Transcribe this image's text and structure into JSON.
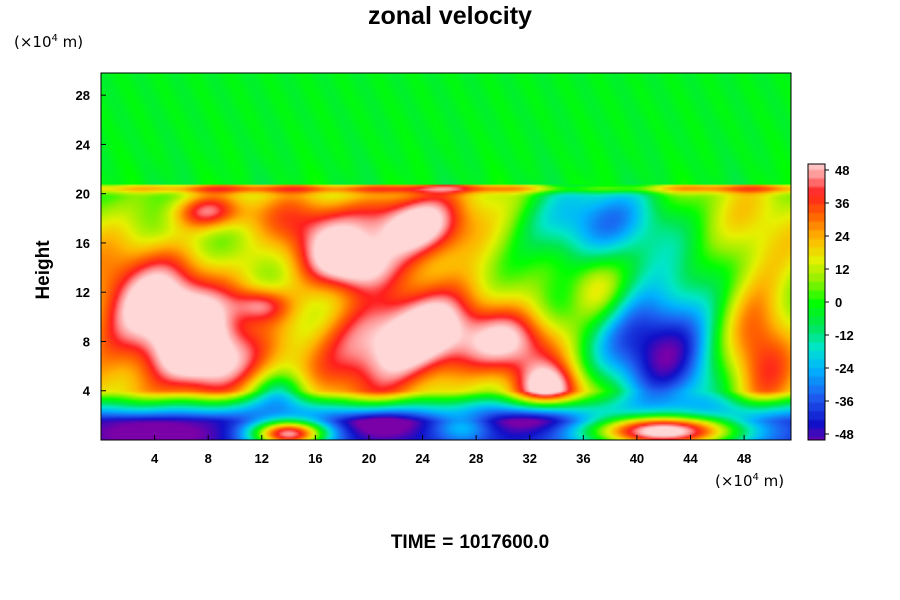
{
  "chart_data": {
    "type": "heatmap",
    "title": "zonal velocity",
    "ylabel": "Height",
    "xlabel": "",
    "y_unit": "(×10⁴ m)",
    "x_unit": "(×10⁴ m)",
    "x_unit_parts": {
      "open": "(×10",
      "exp": "4",
      "close": " m)"
    },
    "y_unit_parts": {
      "open": "(×10",
      "exp": "4",
      "close": " m)"
    },
    "xlim": [
      0,
      51.5
    ],
    "ylim": [
      0,
      29.8
    ],
    "x_ticks": [
      4,
      8,
      12,
      16,
      20,
      24,
      28,
      32,
      36,
      40,
      44,
      48
    ],
    "y_ticks": [
      4,
      8,
      12,
      16,
      20,
      24,
      28
    ],
    "colorbar": {
      "min": -48,
      "max": 48,
      "ticks": [
        48,
        36,
        24,
        12,
        0,
        -12,
        -24,
        -36,
        -48
      ],
      "colors": [
        {
          "v": -52,
          "c": "#7a00a8"
        },
        {
          "v": -44,
          "c": "#1010c8"
        },
        {
          "v": -34,
          "c": "#1e5ef0"
        },
        {
          "v": -24,
          "c": "#00b4ff"
        },
        {
          "v": -16,
          "c": "#00e6c8"
        },
        {
          "v": -8,
          "c": "#00e650"
        },
        {
          "v": 0,
          "c": "#00ff00"
        },
        {
          "v": 8,
          "c": "#8cf000"
        },
        {
          "v": 16,
          "c": "#e6f000"
        },
        {
          "v": 24,
          "c": "#ffb400"
        },
        {
          "v": 32,
          "c": "#ff6400"
        },
        {
          "v": 40,
          "c": "#ff1e1e"
        },
        {
          "v": 46,
          "c": "#ff8c8c"
        },
        {
          "v": 52,
          "c": "#ffd7d7"
        }
      ]
    },
    "features": [
      {
        "x": 4.5,
        "y": 10,
        "sx": 4.0,
        "sy": 3.5,
        "v": 55
      },
      {
        "x": 8,
        "y": 6,
        "sx": 2.5,
        "sy": 2.2,
        "v": 40
      },
      {
        "x": 8,
        "y": 18.5,
        "sx": 2.0,
        "sy": 1.0,
        "v": 35
      },
      {
        "x": 12,
        "y": 11,
        "sx": 1.5,
        "sy": 1.0,
        "v": 30
      },
      {
        "x": 16.5,
        "y": 16,
        "sx": 2.5,
        "sy": 2.5,
        "v": 30
      },
      {
        "x": 21,
        "y": 7.5,
        "sx": 3.5,
        "sy": 3.0,
        "v": 50
      },
      {
        "x": 25,
        "y": 9,
        "sx": 2.5,
        "sy": 2.5,
        "v": 28
      },
      {
        "x": 23.5,
        "y": 17.5,
        "sx": 3.0,
        "sy": 2.0,
        "v": 58
      },
      {
        "x": 19,
        "y": 14,
        "sx": 2.0,
        "sy": 1.5,
        "v": 32
      },
      {
        "x": 31,
        "y": 8,
        "sx": 2.5,
        "sy": 2.0,
        "v": 38
      },
      {
        "x": 33.5,
        "y": 4,
        "sx": 1.8,
        "sy": 1.5,
        "v": 45
      },
      {
        "x": 37,
        "y": 12,
        "sx": 1.5,
        "sy": 2.0,
        "v": 20
      },
      {
        "x": 49,
        "y": 8,
        "sx": 2.0,
        "sy": 5.0,
        "v": 32
      },
      {
        "x": 42,
        "y": 8,
        "sx": 3.5,
        "sy": 4.0,
        "v": -56
      },
      {
        "x": 36,
        "y": 17.5,
        "sx": 4.0,
        "sy": 2.5,
        "v": -40
      },
      {
        "x": 30,
        "y": 16,
        "sx": 3.0,
        "sy": 3.0,
        "v": 8
      },
      {
        "x": 46,
        "y": 17,
        "sx": 3.0,
        "sy": 2.0,
        "v": 6
      },
      {
        "x": 13.5,
        "y": 3.5,
        "sx": 1.5,
        "sy": 1.3,
        "v": -30
      },
      {
        "x": 21,
        "y": 12,
        "sx": 2.0,
        "sy": 1.5,
        "v": -6
      },
      {
        "x": 28,
        "y": 12.5,
        "sx": 2.0,
        "sy": 2.0,
        "v": 4
      },
      {
        "x": 14,
        "y": 18,
        "sx": 2.0,
        "sy": 1.5,
        "v": 8
      }
    ],
    "bottom_layer": {
      "base": -42,
      "top": 2.5,
      "features": [
        {
          "x": 4,
          "y": 0.5,
          "sx": 4.0,
          "sy": 1.0,
          "v": -14
        },
        {
          "x": 21,
          "y": 1.5,
          "sx": 2.0,
          "sy": 1.0,
          "v": -18
        },
        {
          "x": 32,
          "y": 1.8,
          "sx": 2.5,
          "sy": 1.0,
          "v": -16
        },
        {
          "x": 14,
          "y": 0.5,
          "sx": 2.0,
          "sy": 0.8,
          "v": 90
        },
        {
          "x": 42,
          "y": 0.7,
          "sx": 4.0,
          "sy": 1.0,
          "v": 100
        },
        {
          "x": 27,
          "y": 1.0,
          "sx": 1.5,
          "sy": 0.9,
          "v": 20
        }
      ]
    },
    "stratosphere": {
      "value": 0,
      "boundary": 20.4
    }
  },
  "time": {
    "label": "TIME",
    "eq": "=",
    "value": "1017600.0"
  }
}
